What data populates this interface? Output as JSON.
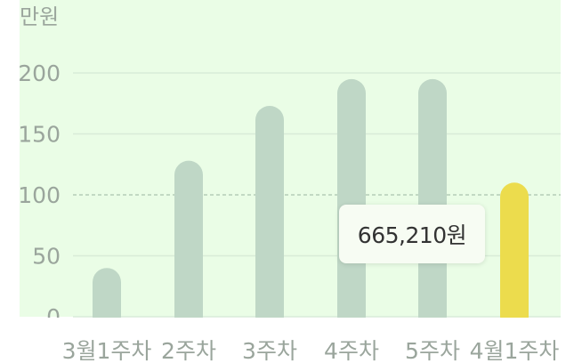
{
  "chart_data": {
    "type": "bar",
    "unit_label": "만원",
    "categories": [
      "3월1주차",
      "2주차",
      "3주차",
      "4주차",
      "5주차",
      "4월1주차"
    ],
    "values": [
      40,
      128,
      173,
      195,
      195,
      110
    ],
    "ylim": [
      0,
      220
    ],
    "yticks": [
      0,
      50,
      100,
      150,
      200
    ],
    "ytick_labels": [
      "0",
      "50",
      "100",
      "150",
      "200"
    ],
    "reference_line": 100,
    "highlight_index": 5,
    "tooltip": "665,210원",
    "grid": true,
    "colors": {
      "background": "#eafde6",
      "bar": "#bfd7c6",
      "highlight": "#ecdc4d",
      "axis_text": "#9aa59c",
      "grid": "#d8ecd8",
      "reference": "#aac4ae"
    }
  }
}
